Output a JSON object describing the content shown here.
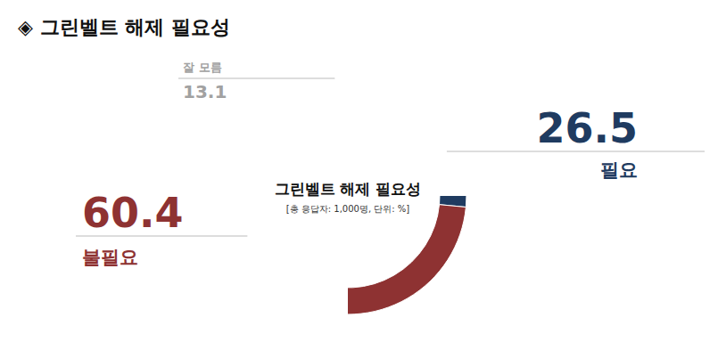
{
  "chart_data": {
    "type": "pie",
    "title": "◈ 그린벨트 해제 필요성",
    "annotations": [
      "그린벨트 해제 필요성",
      "[총 응답자: 1,000명, 단위: %]"
    ],
    "categories": [
      "필요",
      "불필요",
      "잘 모름"
    ],
    "values": [
      26.5,
      60.4,
      13.1
    ],
    "colors": [
      "#1f3b60",
      "#8e3232",
      "#c8c8c8"
    ],
    "data_labels": true
  }
}
